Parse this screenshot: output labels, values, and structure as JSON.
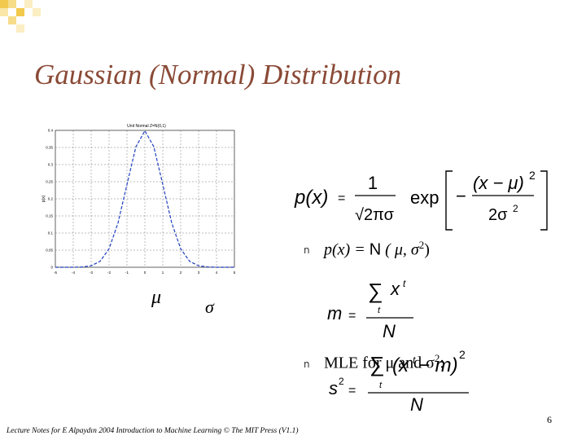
{
  "slide": {
    "title": "Gaussian (Normal) Distribution",
    "page_number": "6",
    "footer": "Lecture Notes for E Alpaydın 2004 Introduction to Machine Learning © The MIT Press (V1.1)"
  },
  "symbols": {
    "mu": "μ",
    "sigma": "σ"
  },
  "bullets": {
    "marker": "n",
    "item1": {
      "lhs": "p(x) = ",
      "dist": "N",
      "args": " ( μ, σ",
      "sup": "2",
      "close": ")"
    },
    "item2": {
      "text": "MLE for μ and σ",
      "sup": "2",
      "colon": ":"
    }
  },
  "equations": {
    "pdf": {
      "lhs": "p(x)",
      "eq": "=",
      "num": "1",
      "den": "√2πσ",
      "exp": "exp",
      "inner_num": "(x − μ)",
      "inner_pow": "2",
      "inner_den": "2σ",
      "inner_den_pow": "2",
      "minus": "−"
    },
    "mean": {
      "lhs": "m",
      "eq": "=",
      "sum": "∑",
      "sum_sub": "t",
      "num": "x",
      "num_sup": "t",
      "den": "N"
    },
    "variance": {
      "lhs": "s",
      "lhs_sup": "2",
      "eq": "=",
      "sum": "∑",
      "sum_sub": "t",
      "num": "(x",
      "num_sup": "t",
      "num_rest": " − m)",
      "num_pow": "2",
      "den": "N"
    }
  },
  "chart_data": {
    "type": "line",
    "title": "Unit Normal Z=N(0,1)",
    "ylabel": "p(x)",
    "xlim": [
      -5,
      5
    ],
    "ylim": [
      0,
      0.4
    ],
    "x_ticks": [
      "-5",
      "-4",
      "-3",
      "-2",
      "-1",
      "0",
      "1",
      "2",
      "3",
      "4",
      "5"
    ],
    "y_ticks": [
      "0",
      "0.05",
      "0.1",
      "0.15",
      "0.2",
      "0.25",
      "0.3",
      "0.35",
      "0.4"
    ],
    "grid": true,
    "series": [
      {
        "style": "dashed",
        "color": "#1f3fbf",
        "x": [
          -5,
          -4.5,
          -4,
          -3.5,
          -3,
          -2.5,
          -2,
          -1.5,
          -1,
          -0.5,
          0,
          0.5,
          1,
          1.5,
          2,
          2.5,
          3,
          3.5,
          4,
          4.5,
          5
        ],
        "y": [
          0.0,
          0.0,
          0.0001,
          0.0009,
          0.0044,
          0.0175,
          0.054,
          0.1295,
          0.242,
          0.3521,
          0.3989,
          0.3521,
          0.242,
          0.1295,
          0.054,
          0.0175,
          0.0044,
          0.0009,
          0.0001,
          0.0,
          0.0
        ]
      }
    ]
  },
  "colors": {
    "title": "#8a4a36",
    "curve": "#1f3fbf",
    "deco": "#f2c94c"
  }
}
